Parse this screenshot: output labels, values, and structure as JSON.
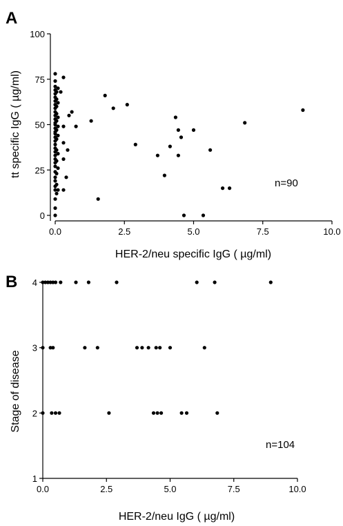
{
  "chart_data": [
    {
      "panel": "A",
      "type": "scatter",
      "xlabel": "HER-2/neu specific IgG ( µg/ml)",
      "ylabel": "tt specific IgG ( µg/ml)",
      "xlim": [
        0,
        10
      ],
      "ylim": [
        0,
        100
      ],
      "xticks": [
        "0.0",
        "2.5",
        "5.0",
        "7.5",
        "10.0"
      ],
      "xtick_values": [
        0,
        2.5,
        5,
        7.5,
        10
      ],
      "yticks": [
        "0",
        "25",
        "50",
        "75",
        "100"
      ],
      "ytick_values": [
        0,
        25,
        50,
        75,
        100
      ],
      "annotation": "n=90",
      "grid": false,
      "points": [
        [
          0.0,
          0
        ],
        [
          0.0,
          4
        ],
        [
          0.0,
          9
        ],
        [
          0.0,
          14
        ],
        [
          0.0,
          16
        ],
        [
          0.0,
          19
        ],
        [
          0.0,
          21
        ],
        [
          0.0,
          24
        ],
        [
          0.0,
          27
        ],
        [
          0.0,
          29
        ],
        [
          0.0,
          31
        ],
        [
          0.0,
          33
        ],
        [
          0.0,
          35
        ],
        [
          0.0,
          37
        ],
        [
          0.0,
          39
        ],
        [
          0.0,
          41
        ],
        [
          0.0,
          43
        ],
        [
          0.0,
          45
        ],
        [
          0.0,
          46
        ],
        [
          0.0,
          48
        ],
        [
          0.0,
          50
        ],
        [
          0.0,
          51
        ],
        [
          0.0,
          53
        ],
        [
          0.0,
          55
        ],
        [
          0.0,
          57
        ],
        [
          0.0,
          59
        ],
        [
          0.0,
          61
        ],
        [
          0.0,
          63
        ],
        [
          0.0,
          65
        ],
        [
          0.0,
          67
        ],
        [
          0.0,
          69
        ],
        [
          0.0,
          71
        ],
        [
          0.0,
          74
        ],
        [
          0.0,
          78
        ],
        [
          0.05,
          12
        ],
        [
          0.05,
          17
        ],
        [
          0.05,
          23
        ],
        [
          0.05,
          30
        ],
        [
          0.05,
          36
        ],
        [
          0.05,
          42
        ],
        [
          0.05,
          47
        ],
        [
          0.05,
          52
        ],
        [
          0.05,
          56
        ],
        [
          0.05,
          60
        ],
        [
          0.05,
          64
        ],
        [
          0.05,
          68
        ],
        [
          0.1,
          14
        ],
        [
          0.1,
          26
        ],
        [
          0.1,
          34
        ],
        [
          0.1,
          44
        ],
        [
          0.1,
          49
        ],
        [
          0.1,
          54
        ],
        [
          0.1,
          62
        ],
        [
          0.1,
          70
        ],
        [
          0.2,
          68
        ],
        [
          0.3,
          14
        ],
        [
          0.3,
          31
        ],
        [
          0.3,
          40
        ],
        [
          0.3,
          49
        ],
        [
          0.3,
          76
        ],
        [
          0.4,
          21
        ],
        [
          0.45,
          36
        ],
        [
          0.5,
          55
        ],
        [
          0.6,
          57
        ],
        [
          0.75,
          49
        ],
        [
          1.3,
          52
        ],
        [
          1.55,
          9
        ],
        [
          1.8,
          66
        ],
        [
          2.1,
          59
        ],
        [
          2.6,
          61
        ],
        [
          2.9,
          39
        ],
        [
          3.7,
          33
        ],
        [
          3.95,
          22
        ],
        [
          4.15,
          38
        ],
        [
          4.35,
          54
        ],
        [
          4.45,
          33
        ],
        [
          4.45,
          47
        ],
        [
          4.55,
          43
        ],
        [
          4.65,
          0
        ],
        [
          5.0,
          47
        ],
        [
          5.35,
          0
        ],
        [
          5.6,
          36
        ],
        [
          6.05,
          15
        ],
        [
          6.3,
          15
        ],
        [
          6.85,
          51
        ],
        [
          8.95,
          58
        ]
      ]
    },
    {
      "panel": "B",
      "type": "scatter",
      "xlabel": "HER-2/neu IgG ( µg/ml)",
      "ylabel": "Stage of disease",
      "xlim": [
        0,
        10
      ],
      "ylim": [
        1,
        4
      ],
      "xticks": [
        "0.0",
        "2.5",
        "5.0",
        "7.5",
        "10.0"
      ],
      "xtick_values": [
        0,
        2.5,
        5,
        7.5,
        10
      ],
      "yticks": [
        "1",
        "2",
        "3",
        "4"
      ],
      "ytick_values": [
        1,
        2,
        3,
        4
      ],
      "annotation": "n=104",
      "grid": false,
      "points": [
        [
          0.0,
          4
        ],
        [
          0.1,
          4
        ],
        [
          0.2,
          4
        ],
        [
          0.3,
          4
        ],
        [
          0.4,
          4
        ],
        [
          0.5,
          4
        ],
        [
          0.7,
          4
        ],
        [
          1.3,
          4
        ],
        [
          1.8,
          4
        ],
        [
          2.9,
          4
        ],
        [
          6.05,
          4
        ],
        [
          6.75,
          4
        ],
        [
          8.95,
          4
        ],
        [
          0.0,
          3
        ],
        [
          0.3,
          3
        ],
        [
          0.4,
          3
        ],
        [
          1.65,
          3
        ],
        [
          2.15,
          3
        ],
        [
          3.7,
          3
        ],
        [
          3.9,
          3
        ],
        [
          4.15,
          3
        ],
        [
          4.45,
          3
        ],
        [
          4.6,
          3
        ],
        [
          5.0,
          3
        ],
        [
          6.35,
          3
        ],
        [
          0.0,
          2
        ],
        [
          0.35,
          2
        ],
        [
          0.5,
          2
        ],
        [
          0.65,
          2
        ],
        [
          2.6,
          2
        ],
        [
          4.35,
          2
        ],
        [
          4.5,
          2
        ],
        [
          4.65,
          2
        ],
        [
          5.45,
          2
        ],
        [
          5.65,
          2
        ],
        [
          6.85,
          2
        ]
      ]
    }
  ]
}
